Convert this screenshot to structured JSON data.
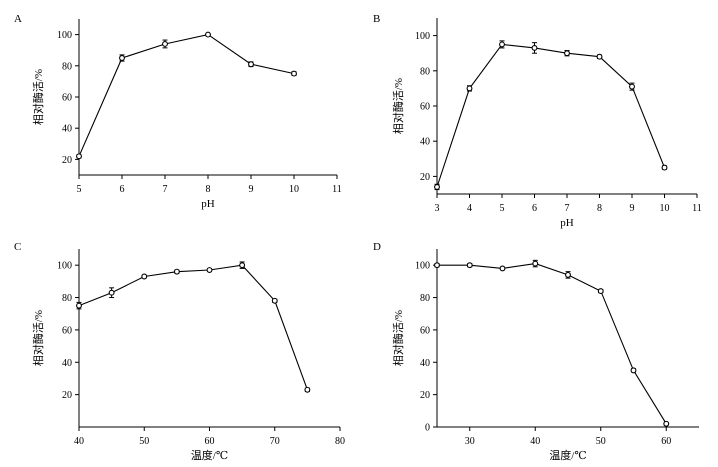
{
  "chart_data": [
    {
      "type": "line",
      "panel": "A",
      "xlabel": "pH",
      "ylabel": "相对酶活/%",
      "xlim": [
        5,
        11
      ],
      "ylim": [
        10,
        110
      ],
      "xticks": [
        5,
        6,
        7,
        8,
        9,
        10,
        11
      ],
      "yticks": [
        20,
        40,
        60,
        80,
        100
      ],
      "series": [
        {
          "x": [
            5,
            6,
            7,
            8,
            9,
            10
          ],
          "values": [
            22,
            85,
            94,
            100,
            81,
            75
          ],
          "error": [
            1,
            2,
            2.5,
            0.5,
            1.5,
            1.2
          ]
        }
      ]
    },
    {
      "type": "line",
      "panel": "B",
      "xlabel": "pH",
      "ylabel": "相对酶活/%",
      "xlim": [
        3,
        11
      ],
      "ylim": [
        10,
        110
      ],
      "xticks": [
        3,
        4,
        5,
        6,
        7,
        8,
        9,
        10,
        11
      ],
      "yticks": [
        20,
        40,
        60,
        80,
        100
      ],
      "series": [
        {
          "x": [
            3,
            4,
            5,
            6,
            7,
            8,
            9,
            10
          ],
          "values": [
            14,
            70,
            95,
            93,
            90,
            88,
            71,
            25
          ],
          "error": [
            1.5,
            1.5,
            2,
            3,
            1.5,
            1,
            2,
            1
          ]
        }
      ]
    },
    {
      "type": "line",
      "panel": "C",
      "xlabel": "温度/℃",
      "ylabel": "相对酶活/%",
      "xlim": [
        40,
        80
      ],
      "ylim": [
        0,
        110
      ],
      "xticks": [
        40,
        50,
        60,
        70,
        80
      ],
      "yticks": [
        20,
        40,
        60,
        80,
        100
      ],
      "series": [
        {
          "x": [
            40,
            45,
            50,
            55,
            60,
            65,
            70,
            75
          ],
          "values": [
            75,
            83,
            93,
            96,
            97,
            100,
            78,
            23
          ],
          "error": [
            2,
            3,
            0.8,
            1,
            0.8,
            2,
            1,
            1
          ]
        }
      ]
    },
    {
      "type": "line",
      "panel": "D",
      "xlabel": "温度/℃",
      "ylabel": "相对酶活/%",
      "xlim": [
        25,
        65
      ],
      "ylim": [
        0,
        110
      ],
      "xticks": [
        30,
        40,
        50,
        60
      ],
      "yticks": [
        0,
        20,
        40,
        60,
        80,
        100
      ],
      "series": [
        {
          "x": [
            25,
            30,
            35,
            40,
            45,
            50,
            55,
            60
          ],
          "values": [
            100,
            100,
            98,
            101,
            94,
            84,
            35,
            2
          ],
          "error": [
            1,
            1,
            0.8,
            2,
            2,
            1,
            1,
            0.5
          ]
        }
      ]
    }
  ]
}
